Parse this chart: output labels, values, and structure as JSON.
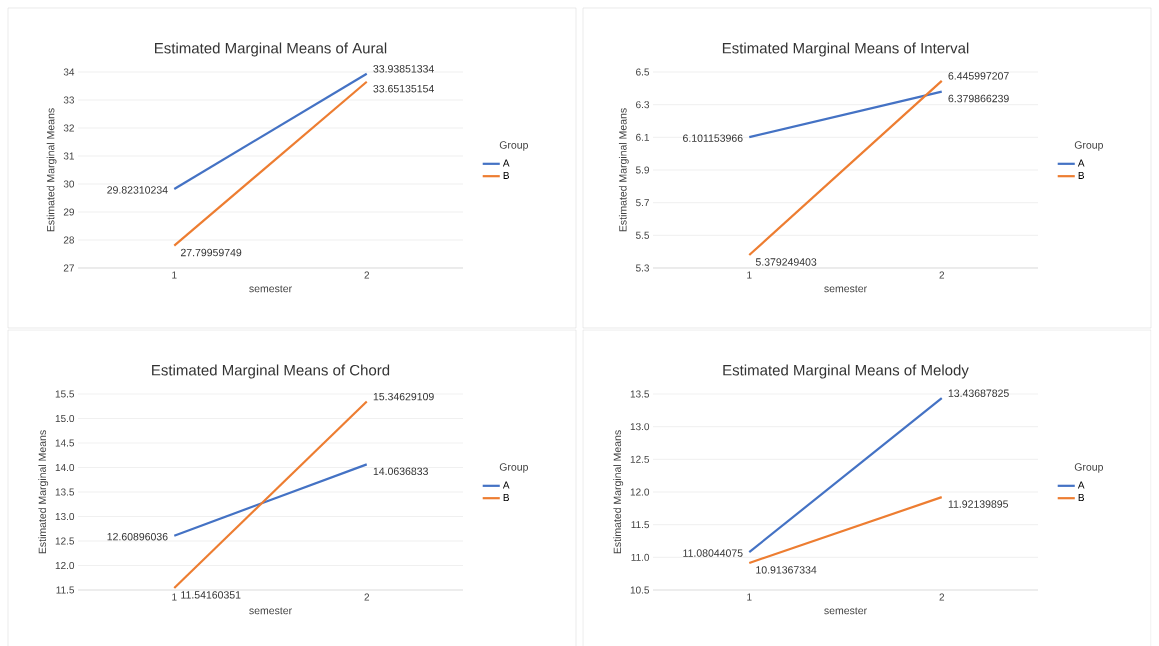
{
  "chart_data": [
    {
      "type": "line",
      "title": "Estimated Marginal Means of Aural",
      "xlabel": "semester",
      "ylabel": "Estimated Marginal Means",
      "legend_title": "Group",
      "legend": "right",
      "grid": "y",
      "data_labels": true,
      "categories": [
        "1",
        "2"
      ],
      "ylim": [
        27,
        34
      ],
      "yticks": [
        27,
        28,
        29,
        30,
        31,
        32,
        33,
        34
      ],
      "series": [
        {
          "name": "A",
          "color": "#4472c4",
          "values": [
            29.82310234,
            33.93851334
          ]
        },
        {
          "name": "B",
          "color": "#ed7d31",
          "values": [
            27.79959749,
            33.65135154
          ]
        }
      ]
    },
    {
      "type": "line",
      "title": "Estimated Marginal Means of Interval",
      "xlabel": "semester",
      "ylabel": "Estimated Marginal Means",
      "legend_title": "Group",
      "legend": "right",
      "grid": "y",
      "data_labels": true,
      "categories": [
        "1",
        "2"
      ],
      "ylim": [
        5.3,
        6.5
      ],
      "yticks": [
        5.3,
        5.5,
        5.7,
        5.9,
        6.1,
        6.3,
        6.5
      ],
      "series": [
        {
          "name": "A",
          "color": "#4472c4",
          "values": [
            6.101153966,
            6.379866239
          ]
        },
        {
          "name": "B",
          "color": "#ed7d31",
          "values": [
            5.379249403,
            6.445997207
          ]
        }
      ]
    },
    {
      "type": "line",
      "title": "Estimated Marginal Means of Chord",
      "xlabel": "semester",
      "ylabel": "Estimated Marginal Means",
      "legend_title": "Group",
      "legend": "right",
      "grid": "y",
      "data_labels": true,
      "categories": [
        "1",
        "2"
      ],
      "ylim": [
        11.5,
        15.5
      ],
      "yticks": [
        11.5,
        {
          "value": 12,
          "label": "12.0"
        },
        12.5,
        {
          "value": 13,
          "label": "13.0"
        },
        13.5,
        {
          "value": 14,
          "label": "14.0"
        },
        14.5,
        {
          "value": 15,
          "label": "15.0"
        },
        15.5
      ],
      "series": [
        {
          "name": "A",
          "color": "#4472c4",
          "values": [
            12.60896036,
            14.0636833
          ]
        },
        {
          "name": "B",
          "color": "#ed7d31",
          "values": [
            11.54160351,
            15.34629109
          ]
        }
      ]
    },
    {
      "type": "line",
      "title": "Estimated Marginal Means of Melody",
      "xlabel": "semester",
      "ylabel": "Estimated Marginal Means",
      "legend_title": "Group",
      "legend": "right",
      "grid": "y",
      "data_labels": true,
      "categories": [
        "1",
        "2"
      ],
      "ylim": [
        10.5,
        13.5
      ],
      "yticks": [
        10.5,
        {
          "value": 11,
          "label": "11.0"
        },
        11.5,
        {
          "value": 12,
          "label": "12.0"
        },
        12.5,
        {
          "value": 13,
          "label": "13.0"
        },
        13.5
      ],
      "series": [
        {
          "name": "A",
          "color": "#4472c4",
          "values": [
            11.08044075,
            13.43687825
          ]
        },
        {
          "name": "B",
          "color": "#ed7d31",
          "values": [
            10.91367334,
            11.92139895
          ]
        }
      ]
    }
  ]
}
